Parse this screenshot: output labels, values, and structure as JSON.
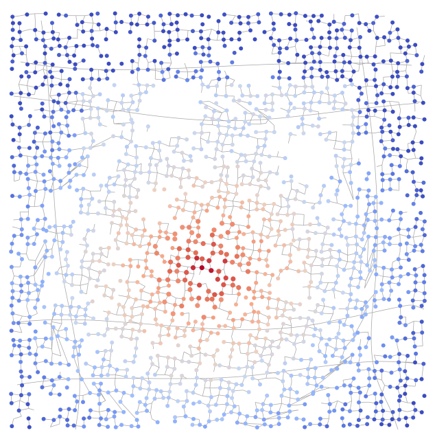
{
  "map": {
    "type": "street network node centrality map",
    "edge_color": "#a6a6a6",
    "background_color": "#ffffff",
    "colormap": {
      "name": "coolwarm",
      "stops": [
        "#3b4cc0",
        "#6788ee",
        "#9abbff",
        "#c9d7f0",
        "#edd1c2",
        "#f7a889",
        "#e26952",
        "#b40426"
      ]
    },
    "node_count_visible": "thousands",
    "central_peak": "high",
    "periphery": "low",
    "labels": []
  }
}
